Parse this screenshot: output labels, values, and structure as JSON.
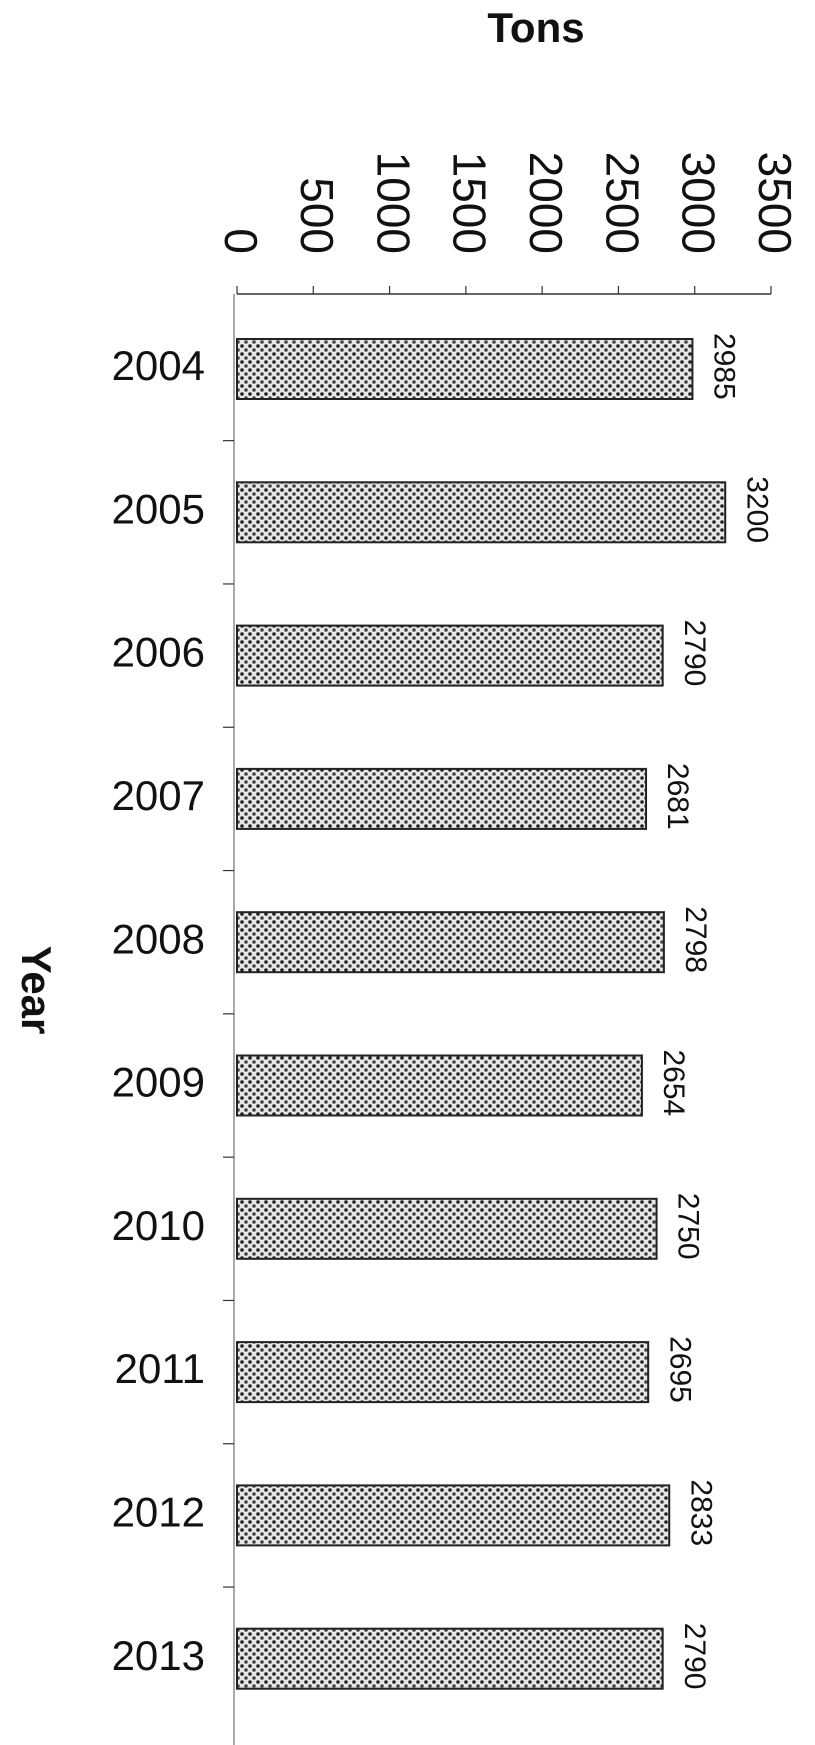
{
  "chart_data": {
    "type": "bar",
    "orientation": "horizontal",
    "x_label": "Tons",
    "y_label": "Year",
    "categories": [
      "2004",
      "2005",
      "2006",
      "2007",
      "2008",
      "2009",
      "2010",
      "2011",
      "2012",
      "2013"
    ],
    "values": [
      2985,
      3200,
      2790,
      2681,
      2798,
      2654,
      2750,
      2695,
      2833,
      2790
    ],
    "color": "#222",
    "xlim": [
      0,
      3500
    ],
    "xticks": [
      0,
      500,
      1000,
      1500,
      2000,
      2500,
      3000,
      3500
    ]
  }
}
